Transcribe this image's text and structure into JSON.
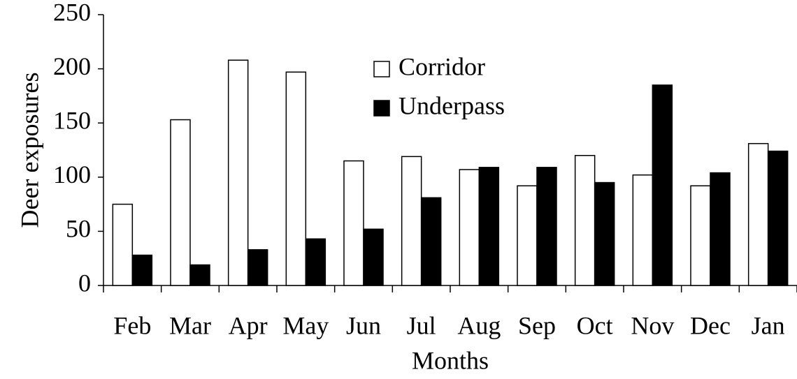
{
  "chart_data": {
    "type": "bar",
    "xlabel": "Months",
    "ylabel": "Deer exposures",
    "categories": [
      "Feb",
      "Mar",
      "Apr",
      "May",
      "Jun",
      "Jul",
      "Aug",
      "Sep",
      "Oct",
      "Nov",
      "Dec",
      "Jan"
    ],
    "series": [
      {
        "name": "Corridor",
        "color": "#ffffff",
        "values": [
          75,
          153,
          208,
          197,
          115,
          119,
          107,
          92,
          120,
          102,
          92,
          131
        ]
      },
      {
        "name": "Underpass",
        "color": "#000000",
        "values": [
          28,
          19,
          33,
          43,
          52,
          81,
          109,
          109,
          95,
          185,
          104,
          124
        ]
      }
    ],
    "ylim": [
      0,
      250
    ],
    "yticks": [
      0,
      50,
      100,
      150,
      200,
      250
    ],
    "grid": false
  }
}
